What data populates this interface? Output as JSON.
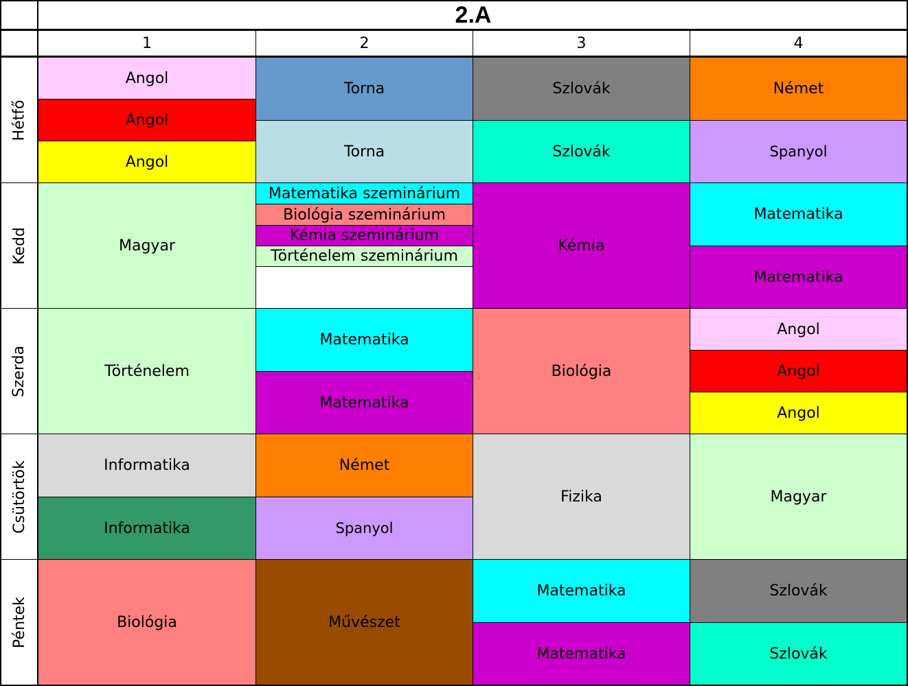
{
  "title": "2.A",
  "periods": [
    "1",
    "2",
    "3",
    "4"
  ],
  "days": [
    "Hétfő",
    "Kedd",
    "Szerda",
    "Csütörtök",
    "Péntek"
  ],
  "colors": {
    "angol_light": "#ffccff",
    "angol_red": "#ff0000",
    "angol_yellow": "#ffff00",
    "torna_blue": "#6699cc",
    "torna_light": "#bbdde6",
    "szlovak_gray": "#808080",
    "szlovak_teal": "#00ffcc",
    "nemet": "#ff8000",
    "spanyol": "#cc99ff",
    "magyar": "#ccffcc",
    "matematika_cyan": "#00ffff",
    "matematika_magenta": "#cc00cc",
    "biologia": "#ff8080",
    "kemia": "#cc00cc",
    "tortenelem": "#ccffcc",
    "informatika_gray": "#d9d9d9",
    "informatika_green": "#339966",
    "fizika": "#d9d9d9",
    "muveszet": "#994c00",
    "empty": "#ffffff"
  },
  "schedule": {
    "hetfo": {
      "p1": [
        "Angol",
        "Angol",
        "Angol"
      ],
      "p2": [
        "Torna",
        "Torna"
      ],
      "p3": [
        "Szlovák",
        "Szlovák"
      ],
      "p4": [
        "Német",
        "Spanyol"
      ]
    },
    "kedd": {
      "p1": [
        "Magyar"
      ],
      "p2": [
        "Matematika szeminárium",
        "Biológia szeminárium",
        "Kémia szeminárium",
        "Történelem szeminárium",
        ""
      ],
      "p3": [
        "Kémia"
      ],
      "p4": [
        "Matematika",
        "Matematika"
      ]
    },
    "szerda": {
      "p1": [
        "Történelem"
      ],
      "p2": [
        "Matematika",
        "Matematika"
      ],
      "p3": [
        "Biológia"
      ],
      "p4": [
        "Angol",
        "Angol",
        "Angol"
      ]
    },
    "csutortok": {
      "p1": [
        "Informatika",
        "Informatika"
      ],
      "p2": [
        "Német",
        "Spanyol"
      ],
      "p3": [
        "Fizika"
      ],
      "p4": [
        "Magyar"
      ]
    },
    "pentek": {
      "p1": [
        "Biológia"
      ],
      "p2": [
        "Művészet"
      ],
      "p3": [
        "Matematika",
        "Matematika"
      ],
      "p4": [
        "Szlovák",
        "Szlovák"
      ]
    }
  }
}
